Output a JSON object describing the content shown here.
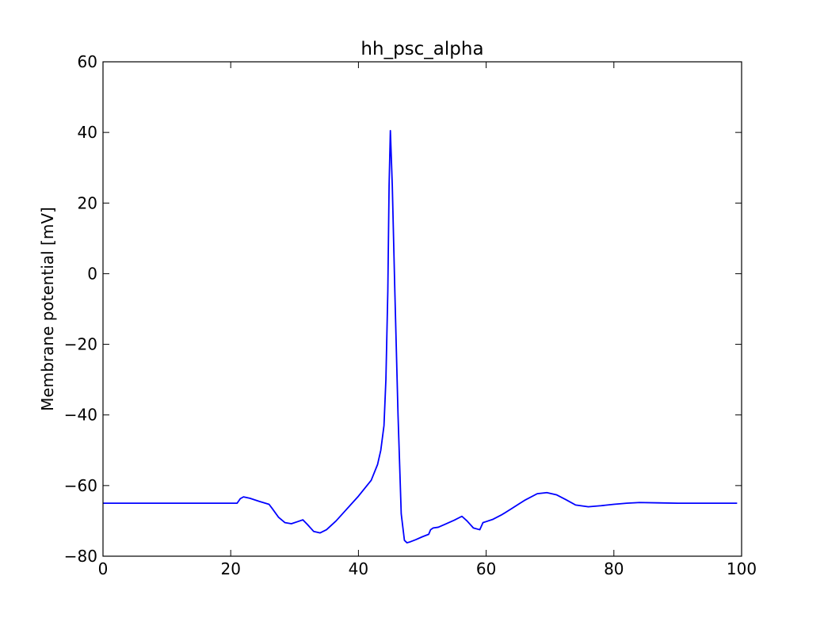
{
  "chart_data": {
    "type": "line",
    "title": "hh_psc_alpha",
    "xlabel": "",
    "ylabel": "Membrane potential [mV]",
    "xlim": [
      0,
      100
    ],
    "ylim": [
      -80,
      60
    ],
    "xticks": [
      0,
      20,
      40,
      60,
      80,
      100
    ],
    "yticks": [
      -80,
      -60,
      -40,
      -20,
      0,
      20,
      40,
      60
    ],
    "xtick_labels": [
      "0",
      "20",
      "40",
      "60",
      "80",
      "100"
    ],
    "ytick_labels": [
      "−80",
      "−60",
      "−40",
      "−20",
      "0",
      "20",
      "40",
      "60"
    ],
    "grid": false,
    "color": "#0000ff",
    "series": [
      {
        "x": [
          0,
          21.0,
          21.5,
          22.0,
          23.0,
          24.5,
          26.0,
          26.5,
          27.5,
          28.5,
          29.5,
          30.5,
          31.3,
          32.0,
          33.0,
          34.0,
          35.0,
          36.5,
          38.0,
          40.0,
          42.0,
          43.0,
          43.5,
          44.0,
          44.3,
          44.6,
          44.8,
          45.0,
          45.3,
          45.7,
          46.2,
          46.7,
          47.2,
          47.6,
          48.0,
          49.0,
          50.0,
          51.0,
          51.3,
          51.7,
          52.5,
          53.5,
          55.0,
          56.2,
          57.0,
          58.0,
          59.0,
          59.5,
          60.0,
          61.0,
          62.5,
          64.0,
          66.0,
          68.0,
          69.5,
          71.0,
          72.5,
          74.0,
          76.0,
          78.0,
          80.0,
          82.0,
          84.0,
          87.0,
          90.0,
          95.0,
          99.3
        ],
        "y": [
          -65,
          -65,
          -63.7,
          -63.2,
          -63.6,
          -64.5,
          -65.3,
          -66.5,
          -69.0,
          -70.5,
          -70.8,
          -70.2,
          -69.7,
          -71.0,
          -73.0,
          -73.4,
          -72.5,
          -70.0,
          -67.0,
          -63.0,
          -58.5,
          -54.0,
          -50.0,
          -43.0,
          -30.0,
          -5.0,
          25.0,
          40.5,
          25.0,
          -5.0,
          -40.0,
          -68.0,
          -75.5,
          -76.2,
          -76.0,
          -75.3,
          -74.5,
          -73.8,
          -72.5,
          -72.0,
          -71.8,
          -71.0,
          -69.8,
          -68.7,
          -70.0,
          -72.0,
          -72.5,
          -70.5,
          -70.2,
          -69.6,
          -68.2,
          -66.5,
          -64.2,
          -62.3,
          -62.0,
          -62.6,
          -64.0,
          -65.5,
          -66.0,
          -65.7,
          -65.3,
          -65.0,
          -64.8,
          -64.9,
          -65.0,
          -65.0,
          -65.0
        ]
      }
    ]
  }
}
